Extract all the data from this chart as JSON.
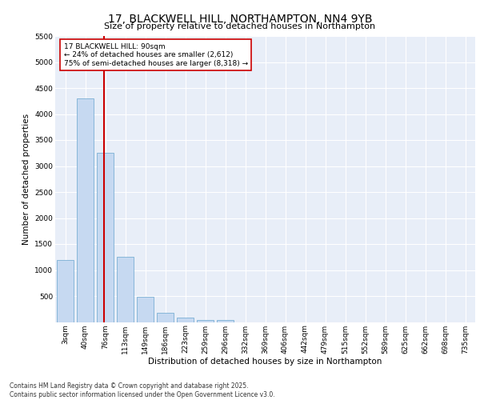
{
  "title": "17, BLACKWELL HILL, NORTHAMPTON, NN4 9YB",
  "subtitle": "Size of property relative to detached houses in Northampton",
  "xlabel": "Distribution of detached houses by size in Northampton",
  "ylabel": "Number of detached properties",
  "categories": [
    "3sqm",
    "40sqm",
    "76sqm",
    "113sqm",
    "149sqm",
    "186sqm",
    "223sqm",
    "259sqm",
    "296sqm",
    "332sqm",
    "369sqm",
    "406sqm",
    "442sqm",
    "479sqm",
    "515sqm",
    "552sqm",
    "589sqm",
    "625sqm",
    "662sqm",
    "698sqm",
    "735sqm"
  ],
  "bar_values": [
    1200,
    4300,
    3250,
    1250,
    480,
    175,
    80,
    45,
    35,
    0,
    0,
    0,
    0,
    0,
    0,
    0,
    0,
    0,
    0,
    0,
    0
  ],
  "bar_color": "#c6d9f1",
  "bar_edge_color": "#7bafd4",
  "vline_color": "#cc0000",
  "annotation_text": "17 BLACKWELL HILL: 90sqm\n← 24% of detached houses are smaller (2,612)\n75% of semi-detached houses are larger (8,318) →",
  "annotation_box_color": "#ffffff",
  "annotation_box_edge_color": "#cc0000",
  "ylim": [
    0,
    5500
  ],
  "yticks": [
    0,
    500,
    1000,
    1500,
    2000,
    2500,
    3000,
    3500,
    4000,
    4500,
    5000,
    5500
  ],
  "footer_line1": "Contains HM Land Registry data © Crown copyright and database right 2025.",
  "footer_line2": "Contains public sector information licensed under the Open Government Licence v3.0.",
  "bg_color": "#e8eef8",
  "grid_color": "#ffffff",
  "title_fontsize": 10,
  "subtitle_fontsize": 8,
  "axis_label_fontsize": 7.5,
  "tick_fontsize": 6.5,
  "annotation_fontsize": 6.5,
  "footer_fontsize": 5.5
}
